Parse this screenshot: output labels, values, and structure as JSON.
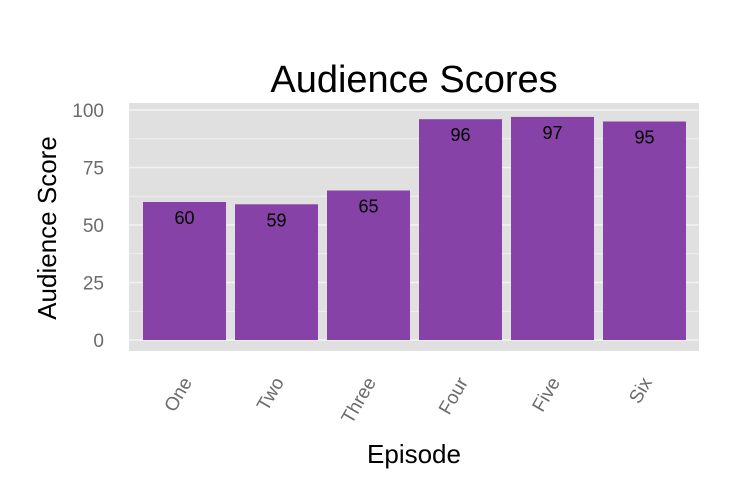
{
  "chart_data": {
    "type": "bar",
    "title": "Audience Scores",
    "xlabel": "Episode",
    "ylabel": "Audience Score",
    "categories": [
      "One",
      "Two",
      "Three",
      "Four",
      "Five",
      "Six"
    ],
    "values": [
      60,
      59,
      65,
      96,
      97,
      95
    ],
    "data_labels": [
      "60",
      "59",
      "65",
      "96",
      "97",
      "95"
    ],
    "y_ticks": [
      0,
      25,
      50,
      75,
      100
    ],
    "y_tick_labels": [
      "0",
      "25",
      "50",
      "75",
      "100"
    ],
    "ylim": [
      0,
      100
    ],
    "grid": true,
    "legend": "none",
    "colors": {
      "bar": "#8642a6",
      "panel": "#e0e0e0",
      "grid": "#f2f2f2"
    }
  }
}
